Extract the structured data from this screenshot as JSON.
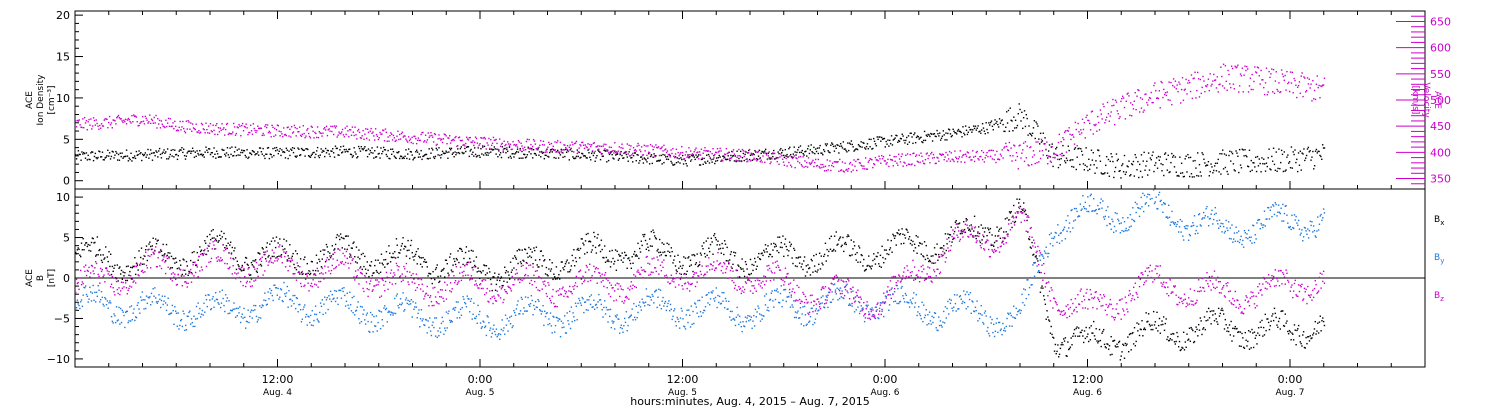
{
  "colors": {
    "black": "#000000",
    "magenta": "#cc00cc",
    "blue": "#1e78dc",
    "axis": "#000000"
  },
  "chart_data": [
    {
      "type": "scatter",
      "panel": "top",
      "left_axis": {
        "label_lines": [
          "ACE",
          "Ion Density",
          "[cm⁻³]"
        ],
        "ylim": [
          -1,
          20.5
        ],
        "ticks": [
          0,
          5,
          10,
          15,
          20
        ],
        "tick_labels": [
          "0",
          "5",
          "10",
          "15",
          "20"
        ]
      },
      "right_axis": {
        "label_lines": [
          "ACE",
          "Velocity",
          "[km/s]"
        ],
        "ylim": [
          330,
          670
        ],
        "ticks": [
          350,
          400,
          450,
          500,
          550,
          600,
          650
        ],
        "tick_labels": [
          "350",
          "400",
          "450",
          "500",
          "550",
          "600",
          "650"
        ],
        "color": "#cc00cc"
      },
      "x_hours": [
        0,
        80
      ],
      "series": [
        {
          "axis": "left",
          "color": "#000000",
          "x": [
            0,
            4,
            8,
            12,
            16,
            20,
            24,
            28,
            32,
            36,
            40,
            44,
            48,
            52,
            54,
            56,
            58,
            60,
            62,
            64,
            66,
            68,
            70,
            72,
            74
          ],
          "y": [
            3.0,
            3.2,
            3.5,
            3.4,
            3.6,
            3.3,
            3.6,
            3.4,
            3.0,
            2.5,
            3.2,
            3.8,
            4.8,
            5.8,
            6.5,
            8.0,
            3.0,
            2.6,
            1.8,
            2.2,
            2.0,
            2.3,
            2.4,
            2.6,
            3.2
          ]
        },
        {
          "axis": "right",
          "color": "#cc00cc",
          "x": [
            0,
            2,
            4,
            6,
            8,
            12,
            16,
            20,
            24,
            28,
            32,
            36,
            40,
            44,
            46,
            48,
            52,
            56,
            58,
            60,
            62,
            64,
            66,
            68,
            70,
            72,
            74
          ],
          "y": [
            455,
            458,
            465,
            452,
            447,
            442,
            440,
            430,
            420,
            412,
            410,
            400,
            395,
            378,
            375,
            385,
            392,
            395,
            405,
            455,
            485,
            510,
            525,
            545,
            540,
            530,
            520
          ]
        }
      ]
    },
    {
      "type": "scatter",
      "panel": "bottom",
      "left_axis": {
        "label_lines": [
          "ACE",
          "B",
          "[nT]"
        ],
        "ylim": [
          -11,
          11
        ],
        "ticks": [
          -10,
          -5,
          0,
          5,
          10
        ],
        "tick_labels": [
          "−10",
          "−5",
          "0",
          "5",
          "10"
        ]
      },
      "x_hours": [
        0,
        80
      ],
      "series": [
        {
          "name": "Bx",
          "label_base": "B",
          "label_sub": "x",
          "color": "#000000",
          "x": [
            0,
            4,
            8,
            12,
            16,
            20,
            24,
            28,
            32,
            36,
            40,
            44,
            48,
            52,
            54,
            56,
            58,
            60,
            64,
            68,
            72,
            74
          ],
          "y": [
            3.0,
            2.0,
            3.5,
            2.5,
            3.0,
            2.5,
            1.0,
            2.0,
            3.5,
            3.0,
            2.5,
            3.0,
            3.5,
            5.0,
            6.0,
            8.0,
            -7.0,
            -8.0,
            -6.5,
            -6.0,
            -6.5,
            -5.0
          ]
        },
        {
          "name": "By",
          "label_base": "B",
          "label_sub": "y",
          "color": "#1e78dc",
          "x": [
            0,
            4,
            8,
            12,
            16,
            20,
            24,
            28,
            32,
            36,
            40,
            44,
            48,
            52,
            56,
            58,
            60,
            64,
            68,
            72,
            74
          ],
          "y": [
            -3.0,
            -3.5,
            -4.0,
            -3.0,
            -3.5,
            -4.5,
            -5.0,
            -4.5,
            -4.0,
            -3.5,
            -4.0,
            -3.0,
            -3.0,
            -4.0,
            -5.0,
            7.0,
            8.0,
            8.5,
            6.0,
            7.0,
            7.5
          ]
        },
        {
          "name": "Bz",
          "label_base": "B",
          "label_sub": "z",
          "color": "#cc00cc",
          "x": [
            0,
            4,
            8,
            12,
            16,
            20,
            24,
            28,
            32,
            36,
            40,
            44,
            48,
            52,
            54,
            56,
            58,
            60,
            64,
            68,
            72,
            74
          ],
          "y": [
            -1.0,
            1.0,
            2.0,
            1.5,
            1.0,
            -1.0,
            -0.5,
            -1.0,
            -0.5,
            1.0,
            0.5,
            -2.0,
            -2.5,
            4.5,
            5.0,
            7.0,
            -2.0,
            -4.0,
            -0.5,
            -2.0,
            -1.0,
            0.0
          ]
        }
      ]
    }
  ],
  "x_axis": {
    "ticks_hours": [
      12,
      24,
      36,
      48,
      60,
      72
    ],
    "time_labels": [
      "12:00",
      "0:00",
      "12:00",
      "0:00",
      "12:00",
      "0:00"
    ],
    "date_labels": [
      "Aug. 4",
      "Aug. 5",
      "Aug. 5",
      "Aug. 6",
      "Aug. 6",
      "Aug. 7"
    ],
    "title": "hours:minutes, Aug.  4, 2015 – Aug.  7, 2015"
  }
}
